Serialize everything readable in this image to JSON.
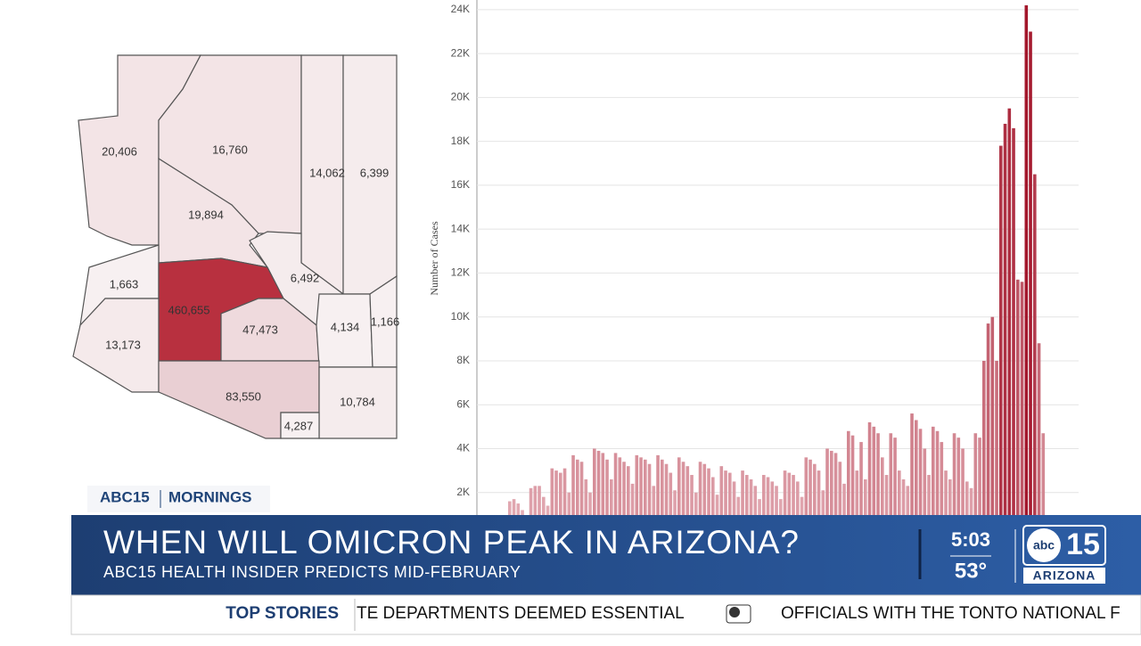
{
  "map": {
    "labels": [
      "20,406",
      "16,760",
      "19,894",
      "14,062",
      "6,399",
      "1,663",
      "6,492",
      "460,655",
      "47,473",
      "4,134",
      "1,166",
      "13,173",
      "83,550",
      "10,784",
      "4,287"
    ]
  },
  "chart_data": {
    "type": "bar",
    "y_label": "Number of Cases",
    "values": [
      1600,
      1700,
      1500,
      1200,
      900,
      2200,
      2300,
      2300,
      1800,
      1400,
      3100,
      3000,
      2900,
      3100,
      2000,
      3700,
      3500,
      3400,
      2600,
      2000,
      4000,
      3900,
      3800,
      3500,
      2600,
      3800,
      3600,
      3400,
      3200,
      2400,
      3700,
      3600,
      3500,
      3300,
      2300,
      3700,
      3500,
      3300,
      2900,
      2100,
      3600,
      3400,
      3200,
      2800,
      2000,
      3400,
      3300,
      3100,
      2700,
      1900,
      3200,
      3000,
      2900,
      2500,
      1800,
      3000,
      2800,
      2600,
      2300,
      1700,
      2800,
      2700,
      2500,
      2300,
      1700,
      3000,
      2900,
      2800,
      2500,
      1800,
      3600,
      3500,
      3300,
      3000,
      2100,
      4000,
      3900,
      3800,
      3400,
      2400,
      4800,
      4600,
      3000,
      4300,
      2600,
      5200,
      5000,
      4700,
      3600,
      2800,
      4700,
      4500,
      3000,
      2600,
      2300,
      5600,
      5300,
      4900,
      4000,
      2800,
      5000,
      4800,
      4300,
      3000,
      2600,
      4700,
      4500,
      4000,
      2500,
      2200,
      4700,
      4500,
      8000,
      9700,
      10000,
      8000,
      17800,
      18800,
      19500,
      18600,
      11700,
      11600,
      24200,
      23000,
      16500,
      8800,
      4700
    ],
    "ylim": [
      0,
      24400
    ],
    "yticks": [
      {
        "value": 2000,
        "label": "2K"
      },
      {
        "value": 4000,
        "label": "4K"
      },
      {
        "value": 6000,
        "label": "6K"
      },
      {
        "value": 8000,
        "label": "8K"
      },
      {
        "value": 10000,
        "label": "10K"
      },
      {
        "value": 12000,
        "label": "12K"
      },
      {
        "value": 14000,
        "label": "14K"
      },
      {
        "value": 16000,
        "label": "16K"
      },
      {
        "value": 18000,
        "label": "18K"
      },
      {
        "value": 20000,
        "label": "20K"
      },
      {
        "value": 22000,
        "label": "22K"
      },
      {
        "value": 24000,
        "label": "24K"
      }
    ],
    "grid": true,
    "color": "#a3162b",
    "color_light": "#f0cbd1"
  },
  "banner": {
    "tag": "ABC15",
    "show": "MORNINGS",
    "headline": "WHEN WILL OMICRON PEAK IN ARIZONA?",
    "subhead": "ABC15 HEALTH INSIDER PREDICTS MID-FEBRUARY",
    "time": "5:03",
    "temperature": "53°",
    "logo_abc": "abc",
    "logo_number": "15",
    "logo_state": "ARIZONA"
  },
  "ticker": {
    "label": "TOP STORIES",
    "items": [
      "TE DEPARTMENTS DEEMED ESSENTIAL",
      "OFFICIALS WITH THE TONTO NATIONAL F"
    ]
  }
}
